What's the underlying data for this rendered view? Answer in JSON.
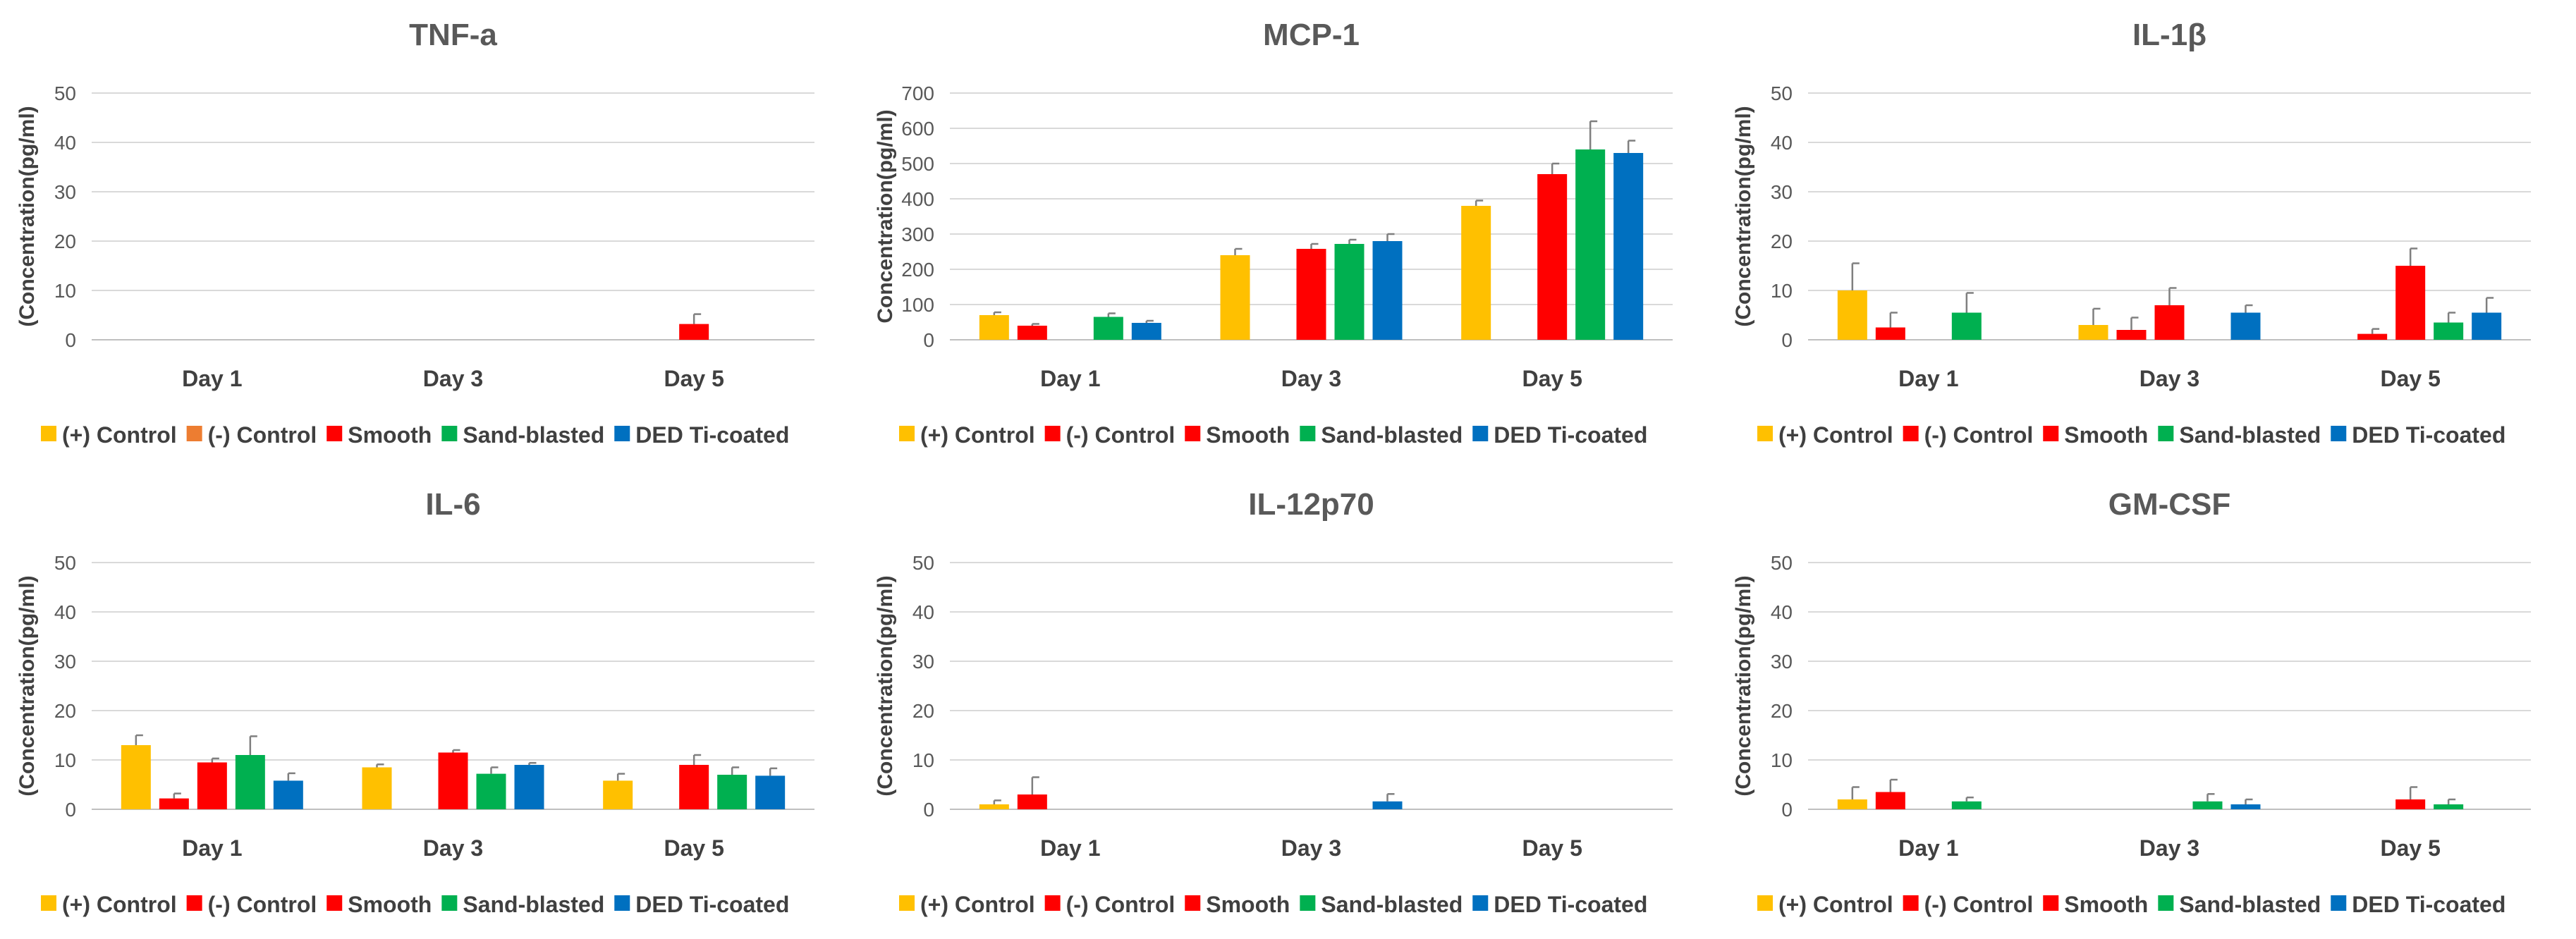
{
  "series_names": [
    "(+) Control",
    "(-) Control",
    "Smooth",
    "Sand-blasted",
    "DED Ti-coated"
  ],
  "chart_data": [
    {
      "type": "bar",
      "title": "TNF-a",
      "ylabel": "(Concentration(pg/ml)",
      "categories": [
        "Day 1",
        "Day 3",
        "Day 5"
      ],
      "ylim": [
        0,
        50
      ],
      "yticks": [
        0,
        10,
        20,
        30,
        40,
        50
      ],
      "legend_position": "bottom",
      "series": [
        {
          "name": "(+) Control",
          "color": "#FFC000",
          "values": [
            0,
            0,
            0
          ],
          "errors": [
            0,
            0,
            0
          ]
        },
        {
          "name": "(-) Control",
          "color": "#ED7D31",
          "values": [
            0,
            0,
            0
          ],
          "errors": [
            0,
            0,
            0
          ]
        },
        {
          "name": "Smooth",
          "color": "#FF0000",
          "values": [
            0,
            0,
            3.2
          ],
          "errors": [
            0,
            0,
            2
          ]
        },
        {
          "name": "Sand-blasted",
          "color": "#00B050",
          "values": [
            0,
            0,
            0
          ],
          "errors": [
            0,
            0,
            0
          ]
        },
        {
          "name": "DED Ti-coated",
          "color": "#0070C0",
          "values": [
            0,
            0,
            0
          ],
          "errors": [
            0,
            0,
            0
          ]
        }
      ]
    },
    {
      "type": "bar",
      "title": "MCP-1",
      "ylabel": "Concentration(pg/ml)",
      "categories": [
        "Day 1",
        "Day 3",
        "Day 5"
      ],
      "ylim": [
        0,
        700
      ],
      "yticks": [
        0,
        100,
        200,
        300,
        400,
        500,
        600,
        700
      ],
      "legend_position": "bottom",
      "series": [
        {
          "name": "(+) Control",
          "color": "#FFC000",
          "values": [
            70,
            240,
            380
          ],
          "errors": [
            8,
            18,
            15
          ]
        },
        {
          "name": "(-) Control",
          "color": "#FF0000",
          "values": [
            40,
            0,
            0
          ],
          "errors": [
            5,
            0,
            0
          ]
        },
        {
          "name": "Smooth",
          "color": "#FF0000",
          "values": [
            0,
            258,
            470
          ],
          "errors": [
            0,
            14,
            30
          ]
        },
        {
          "name": "Sand-blasted",
          "color": "#00B050",
          "values": [
            65,
            272,
            540
          ],
          "errors": [
            10,
            12,
            80
          ]
        },
        {
          "name": "DED Ti-coated",
          "color": "#0070C0",
          "values": [
            48,
            280,
            530
          ],
          "errors": [
            6,
            20,
            35
          ]
        }
      ]
    },
    {
      "type": "bar",
      "title": "IL-1β",
      "ylabel": "(Concentration(pg/ml)",
      "categories": [
        "Day 1",
        "Day 3",
        "Day 5"
      ],
      "ylim": [
        0,
        50
      ],
      "yticks": [
        0,
        10,
        20,
        30,
        40,
        50
      ],
      "legend_position": "bottom",
      "series": [
        {
          "name": "(+) Control",
          "color": "#FFC000",
          "values": [
            10,
            3,
            0
          ],
          "errors": [
            5.5,
            3.3,
            0
          ]
        },
        {
          "name": "(-) Control",
          "color": "#FF0000",
          "values": [
            2.5,
            2,
            1.2
          ],
          "errors": [
            3,
            2.5,
            1
          ]
        },
        {
          "name": "Smooth",
          "color": "#FF0000",
          "values": [
            0,
            7,
            15
          ],
          "errors": [
            0,
            3.5,
            3.5
          ]
        },
        {
          "name": "Sand-blasted",
          "color": "#00B050",
          "values": [
            5.5,
            0,
            3.5
          ],
          "errors": [
            4,
            0,
            2
          ]
        },
        {
          "name": "DED Ti-coated",
          "color": "#0070C0",
          "values": [
            0,
            5.5,
            5.5
          ],
          "errors": [
            0,
            1.5,
            3
          ]
        }
      ]
    },
    {
      "type": "bar",
      "title": "IL-6",
      "ylabel": "(Concentration(pg/ml)",
      "categories": [
        "Day 1",
        "Day 3",
        "Day 5"
      ],
      "ylim": [
        0,
        50
      ],
      "yticks": [
        0,
        10,
        20,
        30,
        40,
        50
      ],
      "legend_position": "bottom",
      "series": [
        {
          "name": "(+) Control",
          "color": "#FFC000",
          "values": [
            13,
            8.5,
            5.8
          ],
          "errors": [
            2,
            0.6,
            1.4
          ]
        },
        {
          "name": "(-) Control",
          "color": "#FF0000",
          "values": [
            2.2,
            0,
            0
          ],
          "errors": [
            1,
            0,
            0
          ]
        },
        {
          "name": "Smooth",
          "color": "#FF0000",
          "values": [
            9.5,
            11.5,
            9
          ],
          "errors": [
            0.8,
            0.5,
            2
          ]
        },
        {
          "name": "Sand-blasted",
          "color": "#00B050",
          "values": [
            11,
            7.2,
            7
          ],
          "errors": [
            3.8,
            1.3,
            1.5
          ]
        },
        {
          "name": "DED Ti-coated",
          "color": "#0070C0",
          "values": [
            5.8,
            9,
            6.8
          ],
          "errors": [
            1.5,
            0.4,
            1.5
          ]
        }
      ]
    },
    {
      "type": "bar",
      "title": "IL-12p70",
      "ylabel": "(Concentration(pg/ml)",
      "categories": [
        "Day 1",
        "Day 3",
        "Day 5"
      ],
      "ylim": [
        0,
        50
      ],
      "yticks": [
        0,
        10,
        20,
        30,
        40,
        50
      ],
      "legend_position": "bottom",
      "series": [
        {
          "name": "(+) Control",
          "color": "#FFC000",
          "values": [
            1,
            0,
            0
          ],
          "errors": [
            0.8,
            0,
            0
          ]
        },
        {
          "name": "(-) Control",
          "color": "#FF0000",
          "values": [
            3,
            0,
            0
          ],
          "errors": [
            3.5,
            0,
            0
          ]
        },
        {
          "name": "Smooth",
          "color": "#FF0000",
          "values": [
            0,
            0,
            0
          ],
          "errors": [
            0,
            0,
            0
          ]
        },
        {
          "name": "Sand-blasted",
          "color": "#00B050",
          "values": [
            0,
            0,
            0
          ],
          "errors": [
            0,
            0,
            0
          ]
        },
        {
          "name": "DED Ti-coated",
          "color": "#0070C0",
          "values": [
            0,
            1.6,
            0
          ],
          "errors": [
            0,
            1.5,
            0
          ]
        }
      ]
    },
    {
      "type": "bar",
      "title": "GM-CSF",
      "ylabel": "(Concentration(pg/ml)",
      "categories": [
        "Day 1",
        "Day 3",
        "Day 5"
      ],
      "ylim": [
        0,
        50
      ],
      "yticks": [
        0,
        10,
        20,
        30,
        40,
        50
      ],
      "legend_position": "bottom",
      "series": [
        {
          "name": "(+) Control",
          "color": "#FFC000",
          "values": [
            2,
            0,
            0
          ],
          "errors": [
            2.5,
            0,
            0
          ]
        },
        {
          "name": "(-) Control",
          "color": "#FF0000",
          "values": [
            3.5,
            0,
            0
          ],
          "errors": [
            2.5,
            0,
            0
          ]
        },
        {
          "name": "Smooth",
          "color": "#FF0000",
          "values": [
            0,
            0,
            2
          ],
          "errors": [
            0,
            0,
            2.5
          ]
        },
        {
          "name": "Sand-blasted",
          "color": "#00B050",
          "values": [
            1.6,
            1.6,
            1
          ],
          "errors": [
            0.8,
            1.5,
            1
          ]
        },
        {
          "name": "DED Ti-coated",
          "color": "#0070C0",
          "values": [
            0,
            1,
            0
          ],
          "errors": [
            0,
            1,
            0
          ]
        }
      ]
    }
  ]
}
